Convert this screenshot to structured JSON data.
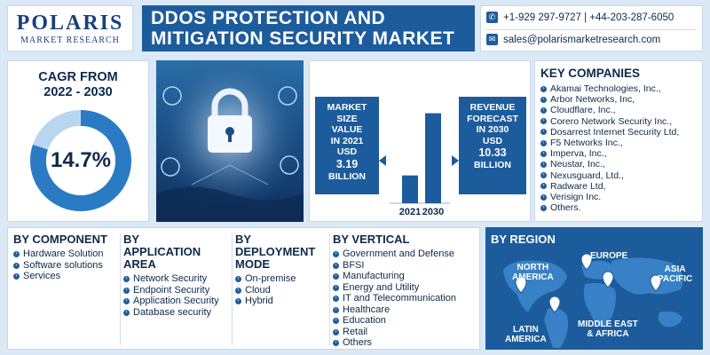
{
  "header": {
    "logo_main": "POLARIS",
    "logo_sub": "MARKET RESEARCH",
    "title_line1": "DDOS PROTECTION AND",
    "title_line2": "MITIGATION SECURITY MARKET",
    "phone": "+1-929 297-9727 | +44-203-287-6050",
    "email": "sales@polarismarketresearch.com"
  },
  "cagr": {
    "title_line1": "CAGR FROM",
    "title_line2": "2022 - 2030",
    "value": "14.7%",
    "fraction": 0.8
  },
  "stats": {
    "left": {
      "line1": "MARKET",
      "line2": "SIZE",
      "line3": "VALUE",
      "line4": "IN 2021",
      "line5": "USD",
      "value": "3.19",
      "unit": "BILLION"
    },
    "right": {
      "line1": "REVENUE",
      "line2": "FORECAST",
      "line3": "IN 2030",
      "line4": "USD",
      "value": "10.33",
      "unit": "BILLION"
    }
  },
  "chart_data": {
    "type": "bar",
    "categories": [
      "2021",
      "2030"
    ],
    "values": [
      3.19,
      10.33
    ],
    "ylim": [
      0,
      11
    ]
  },
  "companies": {
    "title": "KEY COMPANIES",
    "items": [
      "Akamai Technologies, Inc.,",
      "Arbor Networks, Inc,",
      "Cloudflare, Inc.,",
      "Corero Network Security Inc.,",
      "Dosarrest Internet Security Ltd,",
      "F5 Networks Inc.,",
      "Imperva, Inc.,",
      "Neustar, Inc.,",
      "Nexusguard, Ltd.,",
      "Radware Ltd,",
      "Verisign Inc.",
      "Others."
    ]
  },
  "segments": {
    "component": {
      "title": "BY COMPONENT",
      "items": [
        "Hardware Solution",
        "Software solutions",
        "Services"
      ]
    },
    "application": {
      "title_line1": "BY",
      "title_line2": "APPLICATION",
      "title_line3": "AREA",
      "items": [
        "Network Security",
        "Endpoint Security",
        "Application Security",
        "Database security"
      ]
    },
    "deployment": {
      "title_line1": "BY",
      "title_line2": "DEPLOYMENT",
      "title_line3": "MODE",
      "items": [
        "On-premise",
        "Cloud",
        "Hybrid"
      ]
    },
    "vertical": {
      "title": "BY VERTICAL",
      "items": [
        "Government and Defense",
        "BFSI",
        "Manufacturing",
        "Energy and Utility",
        "IT and Telecommunication",
        "Healthcare",
        "Education",
        "Retail",
        "Others"
      ]
    }
  },
  "region": {
    "title": "BY REGION",
    "north_america_1": "NORTH",
    "north_america_2": "AMERICA",
    "europe": "EUROPE",
    "asia_1": "ASIA",
    "asia_2": "PACIFIC",
    "latam_1": "LATIN",
    "latam_2": "AMERICA",
    "mea_1": "MIDDLE EAST",
    "mea_2": "& AFRICA"
  }
}
